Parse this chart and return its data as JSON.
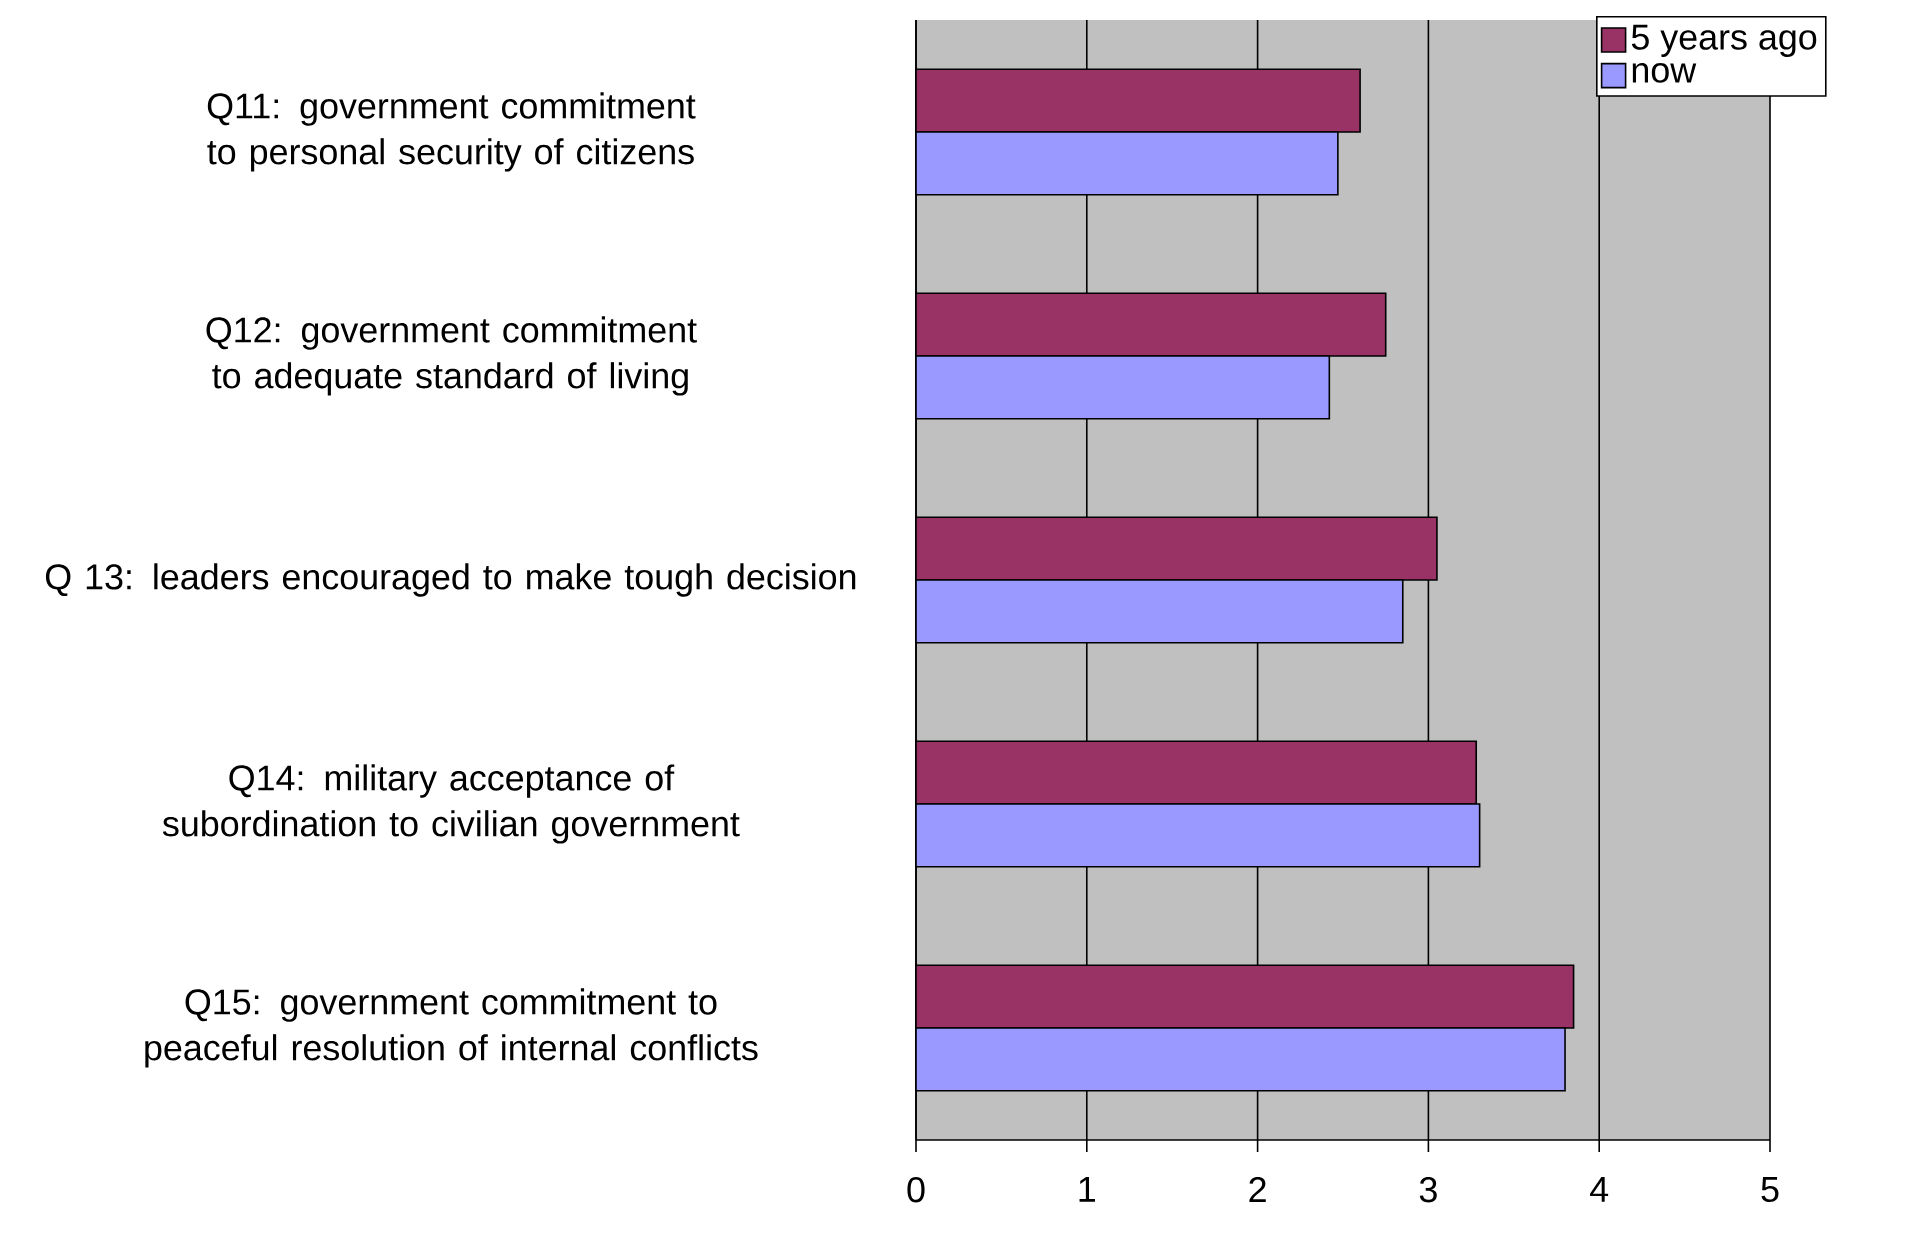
{
  "chart_data": {
    "type": "bar",
    "orientation": "horizontal",
    "categories": [
      "Q11: government commitment to personal security of citizens",
      "Q12: government commitment to adequate standard of living",
      "Q 13: leaders encouraged to make tough decision",
      "Q14: military acceptance of subordination to civilian government",
      "Q15: government commitment to peaceful resolution of internal conflicts"
    ],
    "series": [
      {
        "name": "5 years ago",
        "color": "#993366",
        "values": [
          2.6,
          2.75,
          3.05,
          3.28,
          3.85
        ]
      },
      {
        "name": "now",
        "color": "#9999ff",
        "values": [
          2.47,
          2.42,
          2.85,
          3.3,
          3.8
        ]
      }
    ],
    "xlim": [
      0,
      5
    ],
    "xticks": [
      0,
      1,
      2,
      3,
      4,
      5
    ],
    "grid": "x",
    "legend": "top right"
  }
}
